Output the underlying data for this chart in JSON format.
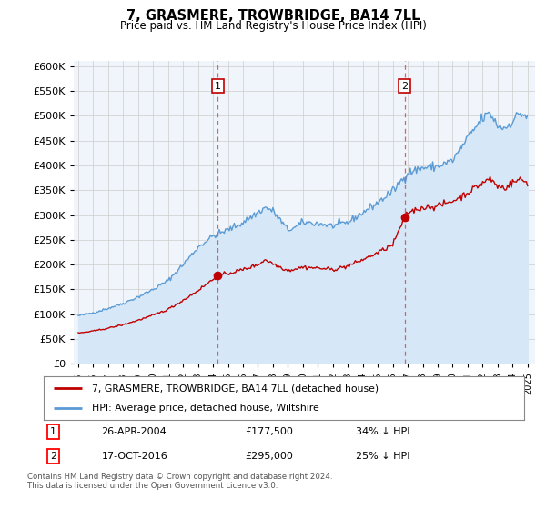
{
  "title": "7, GRASMERE, TROWBRIDGE, BA14 7LL",
  "subtitle": "Price paid vs. HM Land Registry's House Price Index (HPI)",
  "legend_line1": "7, GRASMERE, TROWBRIDGE, BA14 7LL (detached house)",
  "legend_line2": "HPI: Average price, detached house, Wiltshire",
  "annotation1_date": "26-APR-2004",
  "annotation1_price": "£177,500",
  "annotation1_hpi": "34% ↓ HPI",
  "annotation1_year": 2004.32,
  "annotation1_value": 177500,
  "annotation2_date": "17-OCT-2016",
  "annotation2_price": "£295,000",
  "annotation2_hpi": "25% ↓ HPI",
  "annotation2_year": 2016.79,
  "annotation2_value": 295000,
  "footer": "Contains HM Land Registry data © Crown copyright and database right 2024.\nThis data is licensed under the Open Government Licence v3.0.",
  "hpi_color": "#5b9bd5",
  "hpi_fill_color": "#d6e8f7",
  "price_color": "#c00000",
  "dashed_color": "#e06060",
  "marker_box_color": "#c00000",
  "background_color": "#f0f5fb",
  "grid_color": "#cccccc",
  "ylim": [
    0,
    600000
  ],
  "ytick_step": 50000,
  "xlim_start": 1994.7,
  "xlim_end": 2025.5
}
